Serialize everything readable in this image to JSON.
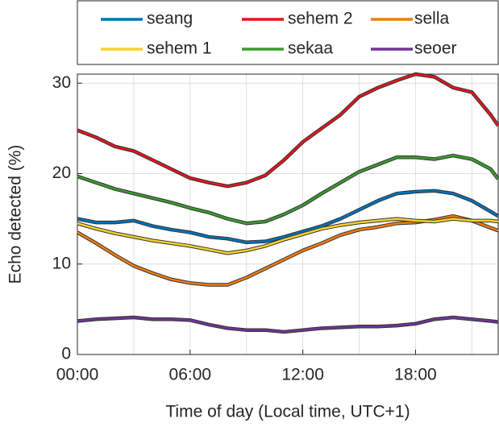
{
  "chart_data": {
    "type": "line",
    "xlabel": "Time of day (Local time, UTC+1)",
    "ylabel": "Echo detected (%)",
    "x": [
      0,
      1,
      2,
      3,
      4,
      5,
      6,
      7,
      8,
      9,
      10,
      11,
      12,
      13,
      14,
      15,
      16,
      17,
      18,
      19,
      20,
      21,
      22,
      22.4
    ],
    "xlim": [
      0,
      22.4
    ],
    "xticks": [
      {
        "value": 0,
        "label": "00:00"
      },
      {
        "value": 6,
        "label": "06:00"
      },
      {
        "value": 12,
        "label": "12:00"
      },
      {
        "value": 18,
        "label": "18:00"
      }
    ],
    "xminorticks": [
      3,
      9,
      15,
      21
    ],
    "ylim": [
      0,
      31
    ],
    "yticks": [
      0,
      10,
      20,
      30
    ],
    "grid": true,
    "series": [
      {
        "name": "seang",
        "color": "#0072bd",
        "values": [
          15,
          14.6,
          14.6,
          14.8,
          14.2,
          13.8,
          13.5,
          13,
          12.8,
          12.4,
          12.5,
          13,
          13.6,
          14.2,
          15,
          16,
          17,
          17.8,
          18,
          18.1,
          17.8,
          17,
          15.8,
          15.3
        ]
      },
      {
        "name": "sehem 2",
        "color": "#e8141c",
        "values": [
          24.8,
          24,
          23,
          22.5,
          21.5,
          20.5,
          19.5,
          19,
          18.6,
          19,
          19.8,
          21.5,
          23.5,
          25,
          26.5,
          28.5,
          29.5,
          30.3,
          31,
          30.7,
          29.5,
          29,
          26.5,
          25.3
        ]
      },
      {
        "name": "sella",
        "color": "#f07c10",
        "values": [
          13.5,
          12.3,
          11,
          9.8,
          9,
          8.3,
          7.9,
          7.7,
          7.7,
          8.5,
          9.5,
          10.5,
          11.5,
          12.3,
          13.2,
          13.8,
          14.1,
          14.5,
          14.6,
          14.9,
          15.3,
          14.8,
          14,
          13.7
        ]
      },
      {
        "name": "sehem 1",
        "color": "#f7d32b",
        "values": [
          14.5,
          13.9,
          13.4,
          13,
          12.6,
          12.3,
          12,
          11.6,
          11.2,
          11.5,
          12,
          12.7,
          13.3,
          13.9,
          14.3,
          14.6,
          14.8,
          15,
          14.8,
          14.7,
          15,
          14.8,
          14.8,
          14.7
        ]
      },
      {
        "name": "sekaa",
        "color": "#3a9c2f",
        "values": [
          19.7,
          19,
          18.3,
          17.8,
          17.3,
          16.8,
          16.2,
          15.7,
          15,
          14.5,
          14.7,
          15.5,
          16.5,
          17.8,
          19,
          20.2,
          21,
          21.8,
          21.8,
          21.6,
          22,
          21.6,
          20.5,
          19.4
        ]
      },
      {
        "name": "seoer",
        "color": "#6f3596",
        "values": [
          3.7,
          3.9,
          4,
          4.1,
          3.9,
          3.9,
          3.8,
          3.3,
          2.9,
          2.7,
          2.7,
          2.5,
          2.7,
          2.9,
          3,
          3.1,
          3.1,
          3.2,
          3.4,
          3.9,
          4.1,
          3.9,
          3.7,
          3.6
        ]
      }
    ]
  }
}
